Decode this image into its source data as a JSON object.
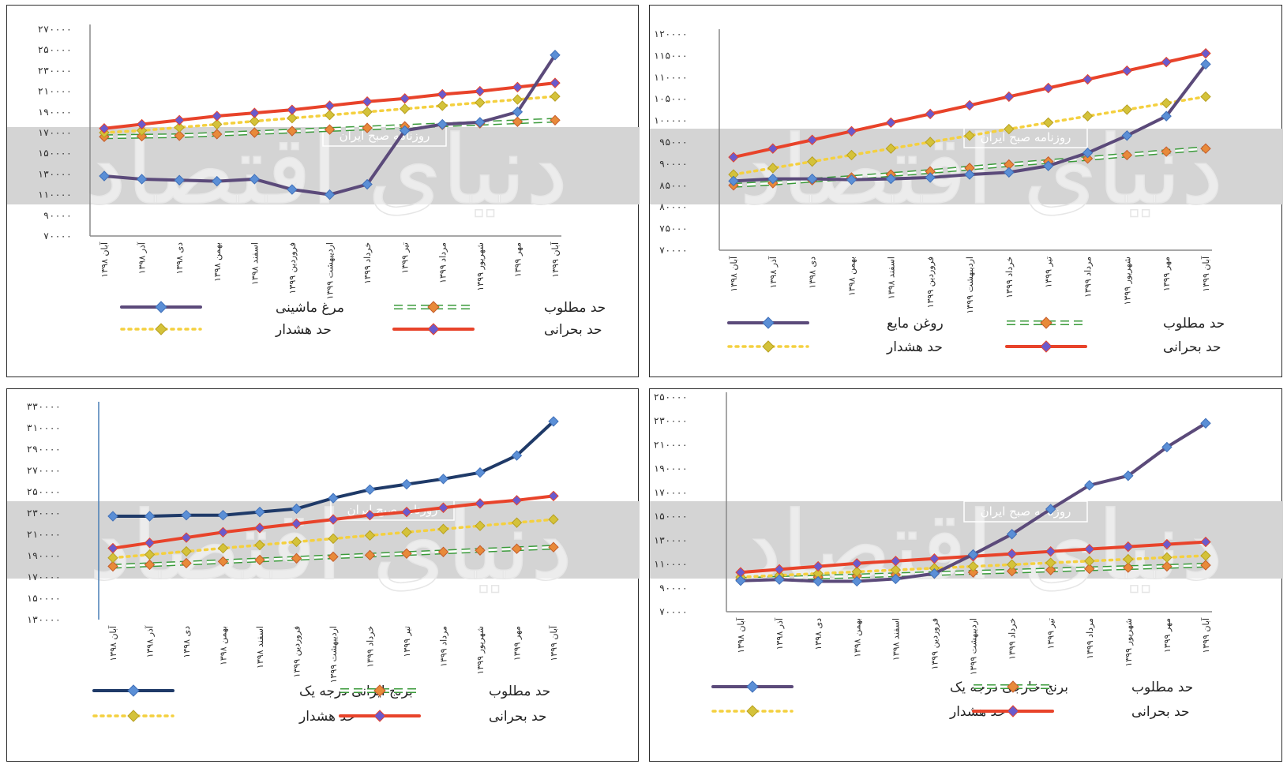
{
  "watermark": {
    "big": "دنیای اقتصاد",
    "small": "روزنامه صبح ایران"
  },
  "colors": {
    "band": "#d4d4d4",
    "axis": "#8a8a8a",
    "critical": "#e8432a",
    "required": "#3a9a3a",
    "required_marker": "#e88a3a",
    "warning": "#f4d03f",
    "warning_marker": "#d4c23a",
    "chicken": "#5b4a7a",
    "oil": "#5b4a7a",
    "iranian_rice": "#1f3a68",
    "foreign_rice": "#5b4a7a",
    "marker_blue": "#5b8fd6",
    "marker_purple": "#6a5acd"
  },
  "x_labels": [
    "آبان ۱۳۹۸",
    "آذر ۱۳۹۸",
    "دی ۱۳۹۸",
    "بهمن ۱۳۹۸",
    "اسفند ۱۳۹۸",
    "فروردین ۱۳۹۹",
    "اردیبهشت ۱۳۹۹",
    "خرداد ۱۳۹۹",
    "تیر ۱۳۹۹",
    "مرداد ۱۳۹۹",
    "شهریور ۱۳۹۹",
    "مهر ۱۳۹۹",
    "آبان ۱۳۹۹"
  ],
  "chart_data": [
    {
      "type": "line",
      "panel": "top-left",
      "ylim": [
        70000,
        270000
      ],
      "yticks": [
        70000,
        90000,
        110000,
        130000,
        150000,
        170000,
        190000,
        210000,
        230000,
        250000,
        270000
      ],
      "ytick_labels": [
        "۷۰۰۰۰",
        "۹۰۰۰۰",
        "۱۱۰۰۰۰",
        "۱۳۰۰۰۰",
        "۱۵۰۰۰۰",
        "۱۷۰۰۰۰",
        "۱۹۰۰۰۰",
        "۲۱۰۰۰۰",
        "۲۳۰۰۰۰",
        "۲۵۰۰۰۰",
        "۲۷۰۰۰۰"
      ],
      "series": [
        {
          "name": "مرغ ماشینی",
          "style": "main",
          "color_key": "chicken",
          "values": [
            128000,
            125000,
            124000,
            123000,
            125000,
            115000,
            110000,
            120000,
            172000,
            178000,
            180000,
            190000,
            245000
          ]
        },
        {
          "name": "حد مطلوب",
          "style": "required",
          "values": [
            166000,
            166500,
            167000,
            168500,
            170000,
            171500,
            173000,
            174500,
            176000,
            177500,
            179000,
            180500,
            182000
          ]
        },
        {
          "name": "حد هشدار",
          "style": "warning",
          "values": [
            170000,
            172000,
            175000,
            178000,
            181000,
            184000,
            187000,
            190000,
            193000,
            196000,
            199000,
            202000,
            205000
          ]
        },
        {
          "name": "حد بحرانی",
          "style": "critical",
          "values": [
            174000,
            178000,
            182000,
            186000,
            189000,
            192000,
            196000,
            200000,
            203000,
            207000,
            210000,
            214000,
            218000
          ]
        }
      ],
      "legend": [
        {
          "label": "مرغ ماشینی",
          "style": "main",
          "color_key": "chicken"
        },
        {
          "label": "حد مطلوب",
          "style": "required"
        },
        {
          "label": "حد هشدار",
          "style": "warning"
        },
        {
          "label": "حد بحرانی",
          "style": "critical"
        }
      ]
    },
    {
      "type": "line",
      "panel": "top-right",
      "ylim": [
        70000,
        120000
      ],
      "yticks": [
        70000,
        75000,
        80000,
        85000,
        90000,
        95000,
        100000,
        105000,
        110000,
        115000,
        120000
      ],
      "ytick_labels": [
        "۷۰۰۰۰",
        "۷۵۰۰۰",
        "۸۰۰۰۰",
        "۸۵۰۰۰",
        "۹۰۰۰۰",
        "۹۵۰۰۰",
        "۱۰۰۰۰۰",
        "۱۰۵۰۰۰",
        "۱۱۰۰۰۰",
        "۱۱۵۰۰۰",
        "۱۲۰۰۰۰"
      ],
      "series": [
        {
          "name": "روغن مایع",
          "style": "main",
          "color_key": "oil",
          "values": [
            86000,
            86500,
            86500,
            86300,
            86500,
            86800,
            87500,
            88000,
            89500,
            92500,
            96500,
            101000,
            113000
          ]
        },
        {
          "name": "حد مطلوب",
          "style": "required",
          "values": [
            85000,
            85500,
            86200,
            86800,
            87500,
            88200,
            89000,
            89800,
            90500,
            91200,
            92000,
            92800,
            93500
          ]
        },
        {
          "name": "حد هشدار",
          "style": "warning",
          "values": [
            87500,
            89000,
            90500,
            92000,
            93500,
            95000,
            96500,
            98000,
            99500,
            101000,
            102500,
            104000,
            105500
          ]
        },
        {
          "name": "حد بحرانی",
          "style": "critical",
          "values": [
            91500,
            93500,
            95500,
            97500,
            99500,
            101500,
            103500,
            105500,
            107500,
            109500,
            111500,
            113500,
            115500
          ]
        }
      ],
      "legend": [
        {
          "label": "روغن مایع",
          "style": "main",
          "color_key": "oil"
        },
        {
          "label": "حد مطلوب",
          "style": "required"
        },
        {
          "label": "حد هشدار",
          "style": "warning"
        },
        {
          "label": "حد بحرانی",
          "style": "critical"
        }
      ]
    },
    {
      "type": "line",
      "panel": "bottom-left",
      "ylim": [
        130000,
        330000
      ],
      "yticks": [
        130000,
        150000,
        170000,
        190000,
        210000,
        230000,
        250000,
        270000,
        290000,
        310000,
        330000
      ],
      "ytick_labels": [
        "۱۳۰۰۰۰",
        "۱۵۰۰۰۰",
        "۱۷۰۰۰۰",
        "۱۹۰۰۰۰",
        "۲۱۰۰۰۰",
        "۲۳۰۰۰۰",
        "۲۵۰۰۰۰",
        "۲۷۰۰۰۰",
        "۲۹۰۰۰۰",
        "۳۱۰۰۰۰",
        "۳۳۰۰۰۰"
      ],
      "series": [
        {
          "name": "برنج ایرانی درجه یک",
          "style": "main",
          "color_key": "iranian_rice",
          "values": [
            227000,
            227000,
            228000,
            228000,
            231000,
            234000,
            244000,
            252000,
            257000,
            262000,
            268000,
            284000,
            316000
          ]
        },
        {
          "name": "حد مطلوب",
          "style": "required",
          "values": [
            180000,
            181500,
            183000,
            184500,
            186000,
            187500,
            189000,
            190500,
            192000,
            193500,
            195000,
            196500,
            198000
          ]
        },
        {
          "name": "حد هشدار",
          "style": "warning",
          "values": [
            188000,
            191000,
            194000,
            197000,
            200000,
            203000,
            206000,
            209000,
            212000,
            215000,
            218000,
            221000,
            224000
          ]
        },
        {
          "name": "حد بحرانی",
          "style": "critical",
          "values": [
            197000,
            202000,
            207000,
            212000,
            216000,
            220000,
            224000,
            228000,
            231000,
            235000,
            239000,
            242000,
            246000
          ]
        }
      ],
      "legend": [
        {
          "label": "برنج ایرانی درجه یک",
          "style": "main",
          "color_key": "iranian_rice"
        },
        {
          "label": "حد مطلوب",
          "style": "required"
        },
        {
          "label": "حد هشدار",
          "style": "warning"
        },
        {
          "label": "حد بحرانی",
          "style": "critical"
        }
      ]
    },
    {
      "type": "line",
      "panel": "bottom-right",
      "ylim": [
        70000,
        250000
      ],
      "yticks": [
        70000,
        90000,
        110000,
        130000,
        150000,
        170000,
        190000,
        210000,
        230000,
        250000
      ],
      "ytick_labels": [
        "۷۰۰۰۰",
        "۹۰۰۰۰",
        "۱۱۰۰۰۰",
        "۱۳۰۰۰۰",
        "۱۵۰۰۰۰",
        "۱۷۰۰۰۰",
        "۱۹۰۰۰۰",
        "۲۱۰۰۰۰",
        "۲۳۰۰۰۰",
        "۲۵۰۰۰۰"
      ],
      "series": [
        {
          "name": "برنج خارجی درجه یک",
          "style": "main",
          "color_key": "foreign_rice",
          "values": [
            96000,
            97000,
            95500,
            95500,
            97500,
            102000,
            118000,
            135000,
            156000,
            176000,
            184000,
            208000,
            228000
          ]
        },
        {
          "name": "حد مطلوب",
          "style": "required",
          "values": [
            97000,
            98000,
            99000,
            100000,
            101000,
            102000,
            103000,
            104000,
            105000,
            106000,
            107000,
            108000,
            109000
          ]
        },
        {
          "name": "حد هشدار",
          "style": "warning",
          "values": [
            99000,
            100500,
            102000,
            103500,
            105000,
            106500,
            108000,
            109500,
            111000,
            112500,
            114000,
            115500,
            117000
          ]
        },
        {
          "name": "حد بحرانی",
          "style": "critical",
          "values": [
            103000,
            105500,
            108000,
            110500,
            112500,
            114500,
            116500,
            118500,
            120500,
            122500,
            124500,
            126500,
            128500
          ]
        }
      ],
      "legend": [
        {
          "label": "برنج خارجی درجه یک",
          "style": "main",
          "color_key": "foreign_rice"
        },
        {
          "label": "حد مطلوب",
          "style": "required"
        },
        {
          "label": "حد هشدار",
          "style": "warning"
        },
        {
          "label": "حد بحرانی",
          "style": "critical"
        }
      ]
    }
  ]
}
